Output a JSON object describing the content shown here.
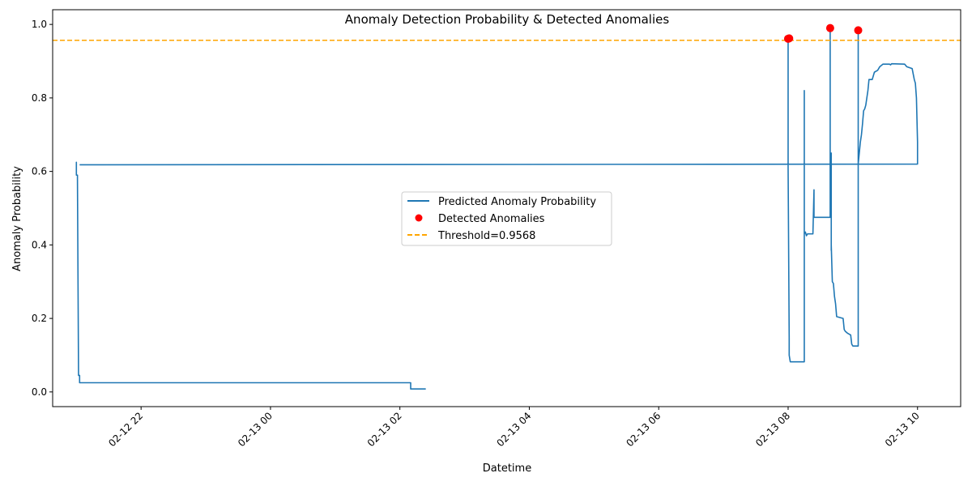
{
  "chart_data": {
    "type": "line",
    "title": "Anomaly Detection Probability & Detected Anomalies",
    "xlabel": "Datetime",
    "ylabel": "Anomaly Probability",
    "x_is_time": true,
    "xlim": [
      "2026-02-12 20:38",
      "2026-02-13 10:40"
    ],
    "ylim": [
      -0.04,
      1.04
    ],
    "x_ticks": [
      {
        "t": "2026-02-12 22:00",
        "label": "02-12 22"
      },
      {
        "t": "2026-02-13 00:00",
        "label": "02-13 00"
      },
      {
        "t": "2026-02-13 02:00",
        "label": "02-13 02"
      },
      {
        "t": "2026-02-13 04:00",
        "label": "02-13 04"
      },
      {
        "t": "2026-02-13 06:00",
        "label": "02-13 06"
      },
      {
        "t": "2026-02-13 08:00",
        "label": "02-13 08"
      },
      {
        "t": "2026-02-13 10:00",
        "label": "02-13 10"
      }
    ],
    "y_ticks": [
      {
        "v": 0.0,
        "label": "0.0"
      },
      {
        "v": 0.2,
        "label": "0.2"
      },
      {
        "v": 0.4,
        "label": "0.4"
      },
      {
        "v": 0.6,
        "label": "0.6"
      },
      {
        "v": 0.8,
        "label": "0.8"
      },
      {
        "v": 1.0,
        "label": "1.0"
      }
    ],
    "grid": false,
    "legend_position": "center",
    "series": [
      {
        "name": "Predicted Anomaly Probability",
        "kind": "line",
        "color": "#1f77b4",
        "points": [
          [
            "2026-02-12 21:00",
            0.62
          ],
          [
            "2026-02-12 21:00",
            0.625
          ],
          [
            "2026-02-12 21:00",
            0.59
          ],
          [
            "2026-02-12 21:01",
            0.59
          ],
          [
            "2026-02-12 21:01",
            0.58
          ],
          [
            "2026-02-12 21:02",
            0.05
          ],
          [
            "2026-02-12 21:02",
            0.045
          ],
          [
            "2026-02-12 21:03",
            0.045
          ],
          [
            "2026-02-12 21:03",
            0.025
          ],
          [
            "2026-02-13 02:10",
            0.025
          ],
          [
            "2026-02-13 02:10",
            0.008
          ],
          [
            "2026-02-13 02:24",
            0.008
          ]
        ]
      },
      {
        "name": "",
        "kind": "line",
        "color": "#1f77b4",
        "points": [
          [
            "2026-02-12 21:03",
            0.618
          ],
          [
            "2026-02-13 10:00",
            0.62
          ],
          [
            "2026-02-13 10:00",
            0.68
          ],
          [
            "2026-02-13 09:59",
            0.8
          ],
          [
            "2026-02-13 09:58",
            0.84
          ],
          [
            "2026-02-13 09:57",
            0.85
          ],
          [
            "2026-02-13 09:55",
            0.88
          ],
          [
            "2026-02-13 09:50",
            0.885
          ],
          [
            "2026-02-13 09:48",
            0.892
          ],
          [
            "2026-02-13 09:36",
            0.893
          ],
          [
            "2026-02-13 09:35",
            0.89
          ],
          [
            "2026-02-13 09:34",
            0.892
          ],
          [
            "2026-02-13 09:28",
            0.892
          ],
          [
            "2026-02-13 09:25",
            0.885
          ],
          [
            "2026-02-13 09:23",
            0.875
          ],
          [
            "2026-02-13 09:20",
            0.87
          ],
          [
            "2026-02-13 09:18",
            0.85
          ],
          [
            "2026-02-13 09:15",
            0.85
          ],
          [
            "2026-02-13 09:14",
            0.82
          ],
          [
            "2026-02-13 09:13",
            0.8
          ],
          [
            "2026-02-13 09:12",
            0.78
          ],
          [
            "2026-02-13 09:11",
            0.77
          ],
          [
            "2026-02-13 09:10",
            0.765
          ],
          [
            "2026-02-13 09:09",
            0.73
          ],
          [
            "2026-02-13 09:08",
            0.7
          ],
          [
            "2026-02-13 09:07",
            0.68
          ],
          [
            "2026-02-13 09:06",
            0.65
          ],
          [
            "2026-02-13 09:05",
            0.62
          ],
          [
            "2026-02-13 09:05",
            0.975
          ],
          [
            "2026-02-13 09:05",
            0.125
          ],
          [
            "2026-02-13 09:00",
            0.125
          ],
          [
            "2026-02-13 08:59",
            0.13
          ],
          [
            "2026-02-13 08:58",
            0.155
          ],
          [
            "2026-02-13 08:55",
            0.16
          ],
          [
            "2026-02-13 08:53",
            0.165
          ],
          [
            "2026-02-13 08:52",
            0.17
          ],
          [
            "2026-02-13 08:51",
            0.2
          ],
          [
            "2026-02-13 08:45",
            0.205
          ],
          [
            "2026-02-13 08:44",
            0.24
          ],
          [
            "2026-02-13 08:43",
            0.26
          ],
          [
            "2026-02-13 08:42",
            0.295
          ],
          [
            "2026-02-13 08:41",
            0.3
          ],
          [
            "2026-02-13 08:40",
            0.4
          ],
          [
            "2026-02-13 08:40",
            0.385
          ],
          [
            "2026-02-13 08:40",
            0.65
          ],
          [
            "2026-02-13 08:39",
            0.475
          ],
          [
            "2026-02-13 08:39",
            0.99
          ],
          [
            "2026-02-13 08:39",
            0.475
          ],
          [
            "2026-02-13 08:24",
            0.475
          ],
          [
            "2026-02-13 08:24",
            0.55
          ],
          [
            "2026-02-13 08:23",
            0.43
          ],
          [
            "2026-02-13 08:18",
            0.43
          ],
          [
            "2026-02-13 08:17",
            0.425
          ],
          [
            "2026-02-13 08:16",
            0.435
          ],
          [
            "2026-02-13 08:15",
            0.43
          ],
          [
            "2026-02-13 08:15",
            0.48
          ],
          [
            "2026-02-13 08:15",
            0.82
          ],
          [
            "2026-02-13 08:15",
            0.082
          ],
          [
            "2026-02-13 08:02",
            0.082
          ],
          [
            "2026-02-13 08:01",
            0.1
          ],
          [
            "2026-02-13 08:01",
            0.145
          ],
          [
            "2026-02-13 08:00",
            0.61
          ],
          [
            "2026-02-13 08:00",
            0.81
          ],
          [
            "2026-02-13 08:00",
            0.96
          ]
        ]
      },
      {
        "name": "Detected Anomalies",
        "kind": "scatter",
        "color": "#ff0000",
        "points": [
          [
            "2026-02-13 08:00",
            0.961
          ],
          [
            "2026-02-13 08:01",
            0.962
          ],
          [
            "2026-02-13 08:39",
            0.99
          ],
          [
            "2026-02-13 09:05",
            0.984
          ]
        ]
      }
    ],
    "threshold": {
      "name": "Threshold=0.9568",
      "value": 0.9568,
      "color": "#ffa500"
    }
  }
}
